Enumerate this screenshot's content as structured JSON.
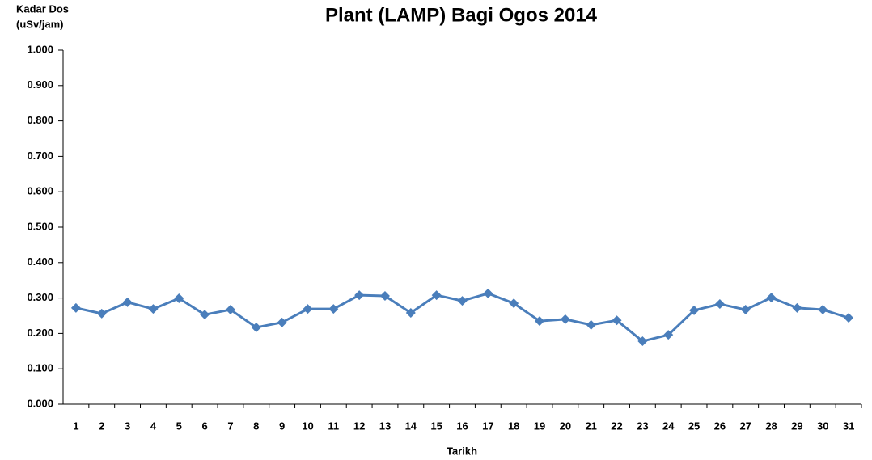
{
  "chart_data": {
    "type": "line",
    "title": "Plant (LAMP) Bagi Ogos 2014",
    "y_label": [
      "Kadar Dos",
      "(uSv/jam)"
    ],
    "x_label": "Tarikh",
    "categories": [
      "1",
      "2",
      "3",
      "4",
      "5",
      "6",
      "7",
      "8",
      "9",
      "10",
      "11",
      "12",
      "13",
      "14",
      "15",
      "16",
      "17",
      "18",
      "19",
      "20",
      "21",
      "22",
      "23",
      "24",
      "25",
      "26",
      "27",
      "28",
      "29",
      "30",
      "31"
    ],
    "series": [
      {
        "color": "#4a7ebb",
        "values": [
          0.272,
          0.256,
          0.288,
          0.269,
          0.299,
          0.253,
          0.267,
          0.217,
          0.231,
          0.269,
          0.269,
          0.308,
          0.306,
          0.258,
          0.308,
          0.292,
          0.313,
          0.285,
          0.235,
          0.24,
          0.224,
          0.237,
          0.178,
          0.196,
          0.265,
          0.283,
          0.267,
          0.301,
          0.272,
          0.267,
          0.244
        ]
      }
    ],
    "ylim": [
      0,
      1
    ],
    "yticks": [
      {
        "value": 0,
        "label": "0.000"
      },
      {
        "value": 0.1,
        "label": "0.100"
      },
      {
        "value": 0.2,
        "label": "0.200"
      },
      {
        "value": 0.3,
        "label": "0.300"
      },
      {
        "value": 0.4,
        "label": "0.400"
      },
      {
        "value": 0.5,
        "label": "0.500"
      },
      {
        "value": 0.6,
        "label": "0.600"
      },
      {
        "value": 0.7,
        "label": "0.700"
      },
      {
        "value": 0.8,
        "label": "0.800"
      },
      {
        "value": 0.9,
        "label": "0.900"
      },
      {
        "value": 1,
        "label": "1.000"
      }
    ],
    "grid": false
  }
}
